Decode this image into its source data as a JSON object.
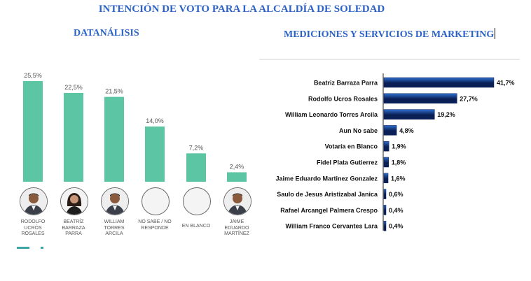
{
  "title": "INTENCIÓN DE VOTO PARA LA ALCALDÍA DE SOLEDAD",
  "colors": {
    "title": "#2b62c7",
    "left_bar": "#5cc5a4",
    "right_bar_dark": "#0a1f55",
    "right_bar_light": "#2f6fd0"
  },
  "chart_data": [
    {
      "type": "bar",
      "title": "DATANÁLISIS",
      "categories": [
        "RODOLFO UCRÓS ROSALES",
        "BEATRÍZ BARRAZA PARRA",
        "WILLIAM TORRES ARCILA",
        "NO SABE / NO RESPONDE",
        "EN BLANCO",
        "JAIME EDUARDO MARTÍNEZ"
      ],
      "category_lines": [
        [
          "RODOLFO",
          "UCRÓS",
          "ROSALES"
        ],
        [
          "BEATRÍZ",
          "BARRAZA",
          "PARRA"
        ],
        [
          "WILLIAM",
          "TORRES",
          "ARCILA"
        ],
        [
          "NO SABE / NO",
          "RESPONDE"
        ],
        [
          "EN BLANCO"
        ],
        [
          "JAIME",
          "EDUARDO",
          "MARTÍNEZ"
        ]
      ],
      "values": [
        25.5,
        22.5,
        21.5,
        14.0,
        7.2,
        2.4
      ],
      "value_labels": [
        "25,5%",
        "22,5%",
        "21,5%",
        "14,0%",
        "7,2%",
        "2,4%"
      ],
      "avatars": [
        "man-photo",
        "woman-photo",
        "man-photo",
        "empty",
        "empty",
        "man-photo"
      ],
      "ylim": [
        0,
        25.5
      ],
      "grid": false
    },
    {
      "type": "bar",
      "orientation": "horizontal",
      "title": "MEDICIONES Y SERVICIOS DE MARKETING",
      "categories": [
        "Beatriz  Barraza Parra",
        "Rodolfo  Ucros Rosales",
        "William Leonardo Torres Arcila",
        "Aun No sabe",
        "Votaría en Blanco",
        "Fidel  Plata Gutierrez",
        "Jaime Eduardo Martinez Gonzalez",
        "Saulo de Jesus Aristizabal Janica",
        "Rafael Arcangel Palmera Crespo",
        "William Franco Cervantes Lara"
      ],
      "values": [
        41.7,
        27.7,
        19.2,
        4.8,
        1.9,
        1.8,
        1.6,
        0.6,
        0.4,
        0.4
      ],
      "value_labels": [
        "41,7%",
        "27,7%",
        "19,2%",
        "4,8%",
        "1,9%",
        "1,8%",
        "1,6%",
        "0,6%",
        "0,4%",
        "0,4%"
      ],
      "xlim": [
        0,
        41.7
      ],
      "grid": false
    }
  ]
}
